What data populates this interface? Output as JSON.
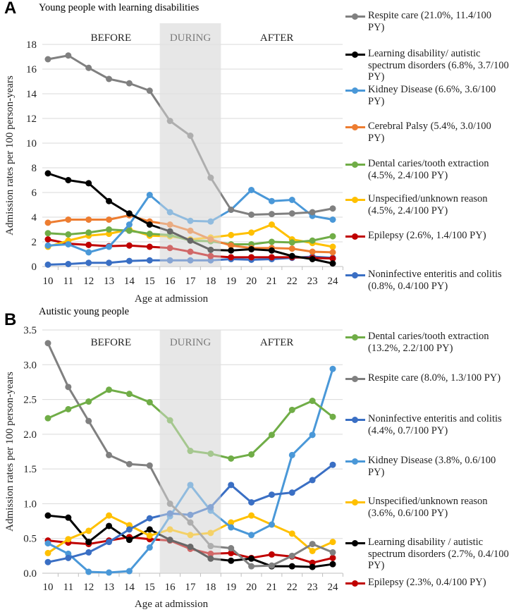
{
  "chart_data": [
    {
      "type": "line",
      "panel": "A",
      "title": "Young people with learning disabilities",
      "xlabel": "Age at admission",
      "ylabel": "Admission rates per 100 person-years",
      "ylim": [
        0,
        18
      ],
      "yticks": [
        "0",
        "2",
        "4",
        "6",
        "8",
        "10",
        "12",
        "14",
        "16",
        "18"
      ],
      "x": [
        10,
        11,
        12,
        13,
        14,
        15,
        16,
        17,
        18,
        19,
        20,
        21,
        22,
        23,
        24
      ],
      "periods": [
        {
          "label": "BEFORE",
          "range": [
            10,
            15.5
          ]
        },
        {
          "label": "DURING",
          "range": [
            15.5,
            18.5
          ],
          "shaded": true
        },
        {
          "label": "AFTER",
          "range": [
            18.5,
            24
          ]
        }
      ],
      "grid": true,
      "legend": "right",
      "series": [
        {
          "name": "Respite care (21.0%, 11.4/100 PY)",
          "color": "#808080",
          "values": [
            16.8,
            17.1,
            16.1,
            15.2,
            14.85,
            14.25,
            11.8,
            10.6,
            7.2,
            4.6,
            4.2,
            4.25,
            4.3,
            4.4,
            4.7
          ]
        },
        {
          "name": "Learning disability/ autistic spectrum disorders (6.8%, 3.7/100 PY)",
          "color": "#000000",
          "values": [
            7.55,
            7.0,
            6.75,
            5.3,
            4.3,
            3.4,
            2.85,
            2.1,
            1.35,
            1.3,
            1.4,
            1.3,
            0.85,
            0.6,
            0.25
          ]
        },
        {
          "name": "Kidney Disease (6.6%, 3.6/100 PY)",
          "color": "#4a98d8",
          "values": [
            1.7,
            1.8,
            1.15,
            1.6,
            3.4,
            5.8,
            4.4,
            3.7,
            3.65,
            4.6,
            6.2,
            5.3,
            5.4,
            4.1,
            3.8
          ]
        },
        {
          "name": "Cerebral Palsy (5.4%, 3.0/100 PY)",
          "color": "#ed7d31",
          "values": [
            3.55,
            3.8,
            3.8,
            3.8,
            4.15,
            3.65,
            3.4,
            2.9,
            2.2,
            1.7,
            1.5,
            1.5,
            1.45,
            1.2,
            1.15
          ]
        },
        {
          "name": "Dental caries/tooth extraction (4.5%, 2.4/100 PY)",
          "color": "#70ad47",
          "values": [
            2.7,
            2.6,
            2.75,
            3.0,
            2.9,
            2.65,
            2.55,
            2.1,
            2.05,
            1.8,
            1.8,
            2.0,
            1.95,
            2.1,
            2.45
          ]
        },
        {
          "name": "Unspecified/unknown reason (4.5%, 2.4/100 PY)",
          "color": "#ffc000",
          "values": [
            1.6,
            2.1,
            2.5,
            2.65,
            3.0,
            2.5,
            2.45,
            2.2,
            2.35,
            2.55,
            2.75,
            3.4,
            2.2,
            1.9,
            1.6
          ]
        },
        {
          "name": "Epilepsy (2.6%, 1.4/100 PY)",
          "color": "#c00000",
          "values": [
            2.2,
            1.85,
            1.75,
            1.65,
            1.7,
            1.6,
            1.5,
            1.2,
            0.85,
            0.75,
            0.75,
            0.75,
            0.75,
            0.7,
            0.65
          ]
        },
        {
          "name": "Noninfective enteritis and colitis (0.8%, 0.4/100 PY)",
          "color": "#3a6fc4",
          "values": [
            0.15,
            0.2,
            0.3,
            0.3,
            0.45,
            0.5,
            0.5,
            0.5,
            0.5,
            0.6,
            0.55,
            0.6,
            0.7,
            0.8,
            0.7
          ]
        }
      ]
    },
    {
      "type": "line",
      "panel": "B",
      "title": "Autistic young people",
      "xlabel": "Age at admission",
      "ylabel": "Admission rates per 100 person-years",
      "ylim": [
        0,
        3.5
      ],
      "yticks": [
        "0.0",
        "0.5",
        "1.0",
        "1.5",
        "2.0",
        "2.5",
        "3.0",
        "3.5"
      ],
      "x": [
        10,
        11,
        12,
        13,
        14,
        15,
        16,
        17,
        18,
        19,
        20,
        21,
        22,
        23,
        24
      ],
      "periods": [
        {
          "label": "BEFORE",
          "range": [
            10,
            15.5
          ]
        },
        {
          "label": "DURING",
          "range": [
            15.5,
            18.5
          ],
          "shaded": true
        },
        {
          "label": "AFTER",
          "range": [
            18.5,
            24
          ]
        }
      ],
      "grid": true,
      "legend": "right",
      "series": [
        {
          "name": "Dental caries/tooth extraction (13.2%, 2.2/100 PY)",
          "color": "#70ad47",
          "values": [
            2.23,
            2.36,
            2.47,
            2.64,
            2.58,
            2.46,
            2.2,
            1.76,
            1.72,
            1.65,
            1.71,
            1.99,
            2.35,
            2.48,
            2.25
          ]
        },
        {
          "name": "Respite care (8.0%, 1.3/100 PY)",
          "color": "#808080",
          "values": [
            3.31,
            2.68,
            2.19,
            1.7,
            1.57,
            1.55,
            1.0,
            0.73,
            0.39,
            0.36,
            0.1,
            0.11,
            0.25,
            0.42,
            0.3
          ]
        },
        {
          "name": "Noninfective enteritis and colitis (4.4%, 0.7/100 PY)",
          "color": "#3a6fc4",
          "values": [
            0.16,
            0.22,
            0.3,
            0.45,
            0.63,
            0.79,
            0.86,
            0.84,
            0.95,
            1.27,
            1.02,
            1.13,
            1.16,
            1.34,
            1.56
          ]
        },
        {
          "name": "Kidney Disease (3.8%, 0.6/100 PY)",
          "color": "#4a98d8",
          "values": [
            0.43,
            0.28,
            0.02,
            0.01,
            0.03,
            0.37,
            0.82,
            1.27,
            0.9,
            0.66,
            0.55,
            0.7,
            1.7,
            1.99,
            2.94
          ]
        },
        {
          "name": "Unspecified/unknown reason (3.6%, 0.6/100 PY)",
          "color": "#ffc000",
          "values": [
            0.29,
            0.49,
            0.61,
            0.83,
            0.69,
            0.54,
            0.63,
            0.55,
            0.58,
            0.73,
            0.83,
            0.7,
            0.57,
            0.32,
            0.45
          ]
        },
        {
          "name": "Learning disability / autistic spectrum disorders (2.7%, 0.4/100 PY)",
          "color": "#000000",
          "values": [
            0.83,
            0.8,
            0.45,
            0.68,
            0.48,
            0.63,
            0.48,
            0.38,
            0.21,
            0.18,
            0.21,
            0.1,
            0.1,
            0.09,
            0.13
          ]
        },
        {
          "name": "Epilepsy (2.3%, 0.4/100 PY)",
          "color": "#c00000",
          "values": [
            0.47,
            0.44,
            0.42,
            0.47,
            0.52,
            0.49,
            0.47,
            0.35,
            0.28,
            0.29,
            0.22,
            0.27,
            0.24,
            0.15,
            0.22
          ]
        }
      ]
    }
  ]
}
